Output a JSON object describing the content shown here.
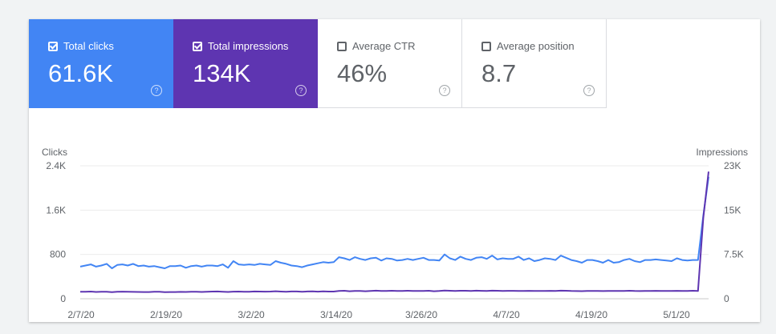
{
  "metrics": [
    {
      "label": "Total clicks",
      "value": "61.6K",
      "checked": true
    },
    {
      "label": "Total impressions",
      "value": "134K",
      "checked": true
    },
    {
      "label": "Average CTR",
      "value": "46%",
      "checked": false
    },
    {
      "label": "Average position",
      "value": "8.7",
      "checked": false
    }
  ],
  "colors": {
    "clicks": "#4285f4",
    "impressions": "#5e35b1"
  },
  "help_glyph": "?",
  "chart_data": {
    "type": "line",
    "left_axis_title": "Clicks",
    "right_axis_title": "Impressions",
    "left_ticks": [
      "0",
      "800",
      "1.6K",
      "2.4K"
    ],
    "right_ticks": [
      "0",
      "7.5K",
      "15K",
      "23K"
    ],
    "left_lim": [
      0,
      2400
    ],
    "right_lim": [
      0,
      23000
    ],
    "x_labels": [
      "2/7/20",
      "2/19/20",
      "3/2/20",
      "3/14/20",
      "3/26/20",
      "4/7/20",
      "4/19/20",
      "5/1/20"
    ],
    "grid": true,
    "series": [
      {
        "name": "Clicks",
        "axis": "left",
        "color": "#4285f4",
        "values": [
          580,
          600,
          620,
          580,
          600,
          630,
          550,
          610,
          620,
          600,
          630,
          590,
          600,
          580,
          590,
          570,
          550,
          590,
          590,
          600,
          560,
          590,
          600,
          580,
          600,
          600,
          590,
          620,
          560,
          680,
          620,
          610,
          620,
          610,
          630,
          620,
          610,
          680,
          650,
          630,
          600,
          590,
          570,
          600,
          620,
          640,
          660,
          650,
          660,
          750,
          730,
          700,
          750,
          720,
          700,
          730,
          740,
          690,
          730,
          720,
          690,
          700,
          720,
          700,
          720,
          740,
          700,
          700,
          690,
          800,
          730,
          700,
          760,
          720,
          700,
          740,
          750,
          720,
          780,
          710,
          730,
          720,
          720,
          760,
          700,
          730,
          680,
          700,
          730,
          720,
          700,
          780,
          740,
          700,
          680,
          650,
          700,
          700,
          680,
          650,
          700,
          650,
          660,
          700,
          720,
          680,
          660,
          700,
          700,
          710,
          700,
          690,
          680,
          730,
          700,
          690,
          700,
          700,
          1500,
          2200
        ]
      },
      {
        "name": "Impressions",
        "axis": "right",
        "color": "#5e35b1",
        "values": [
          1200,
          1200,
          1250,
          1180,
          1200,
          1220,
          1150,
          1200,
          1230,
          1200,
          1190,
          1180,
          1170,
          1160,
          1200,
          1210,
          1150,
          1170,
          1160,
          1190,
          1180,
          1200,
          1220,
          1180,
          1200,
          1250,
          1260,
          1220,
          1180,
          1230,
          1250,
          1200,
          1210,
          1260,
          1250,
          1230,
          1250,
          1300,
          1250,
          1210,
          1260,
          1260,
          1200,
          1260,
          1280,
          1240,
          1280,
          1250,
          1250,
          1350,
          1380,
          1300,
          1360,
          1340,
          1300,
          1350,
          1400,
          1340,
          1350,
          1380,
          1350,
          1340,
          1380,
          1360,
          1350,
          1340,
          1380,
          1300,
          1350,
          1420,
          1380,
          1350,
          1390,
          1380,
          1360,
          1400,
          1370,
          1350,
          1400,
          1380,
          1360,
          1370,
          1370,
          1350,
          1360,
          1370,
          1350,
          1340,
          1360,
          1370,
          1340,
          1400,
          1380,
          1350,
          1330,
          1310,
          1350,
          1350,
          1340,
          1330,
          1350,
          1340,
          1350,
          1360,
          1380,
          1340,
          1330,
          1360,
          1360,
          1370,
          1360,
          1350,
          1340,
          1370,
          1350,
          1360,
          1380,
          1350,
          14000,
          22000
        ]
      }
    ]
  }
}
